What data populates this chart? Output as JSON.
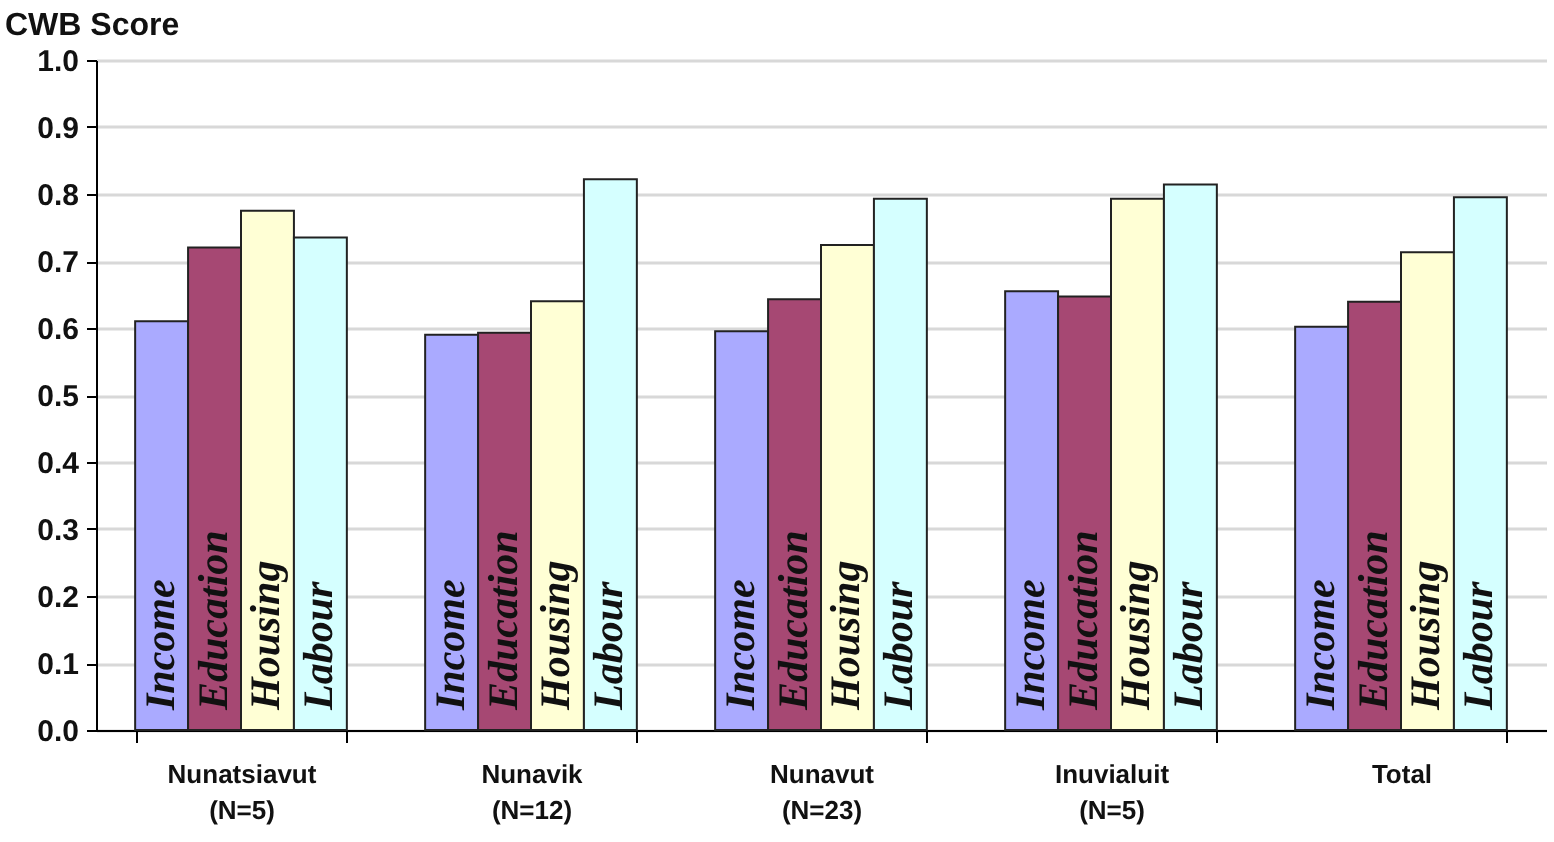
{
  "chart_data": {
    "type": "bar",
    "ylabel": "CWB Score",
    "categories": [
      "Nunatsiavut\n(N=5)",
      "Nunavik\n(N=12)",
      "Nunavut\n(N=23)",
      "Inuvialuit\n(N=5)",
      "Total"
    ],
    "series": [
      {
        "name": "Income",
        "color": "#aaaaff",
        "values": [
          0.61,
          0.59,
          0.595,
          0.655,
          0.602
        ]
      },
      {
        "name": "Education",
        "color": "#a64873",
        "values": [
          0.72,
          0.593,
          0.643,
          0.647,
          0.639
        ]
      },
      {
        "name": "Housing",
        "color": "#ffffd5",
        "values": [
          0.775,
          0.64,
          0.724,
          0.793,
          0.713
        ]
      },
      {
        "name": "Labour",
        "color": "#d5ffff",
        "values": [
          0.735,
          0.822,
          0.793,
          0.814,
          0.795
        ]
      }
    ],
    "ylim": [
      0,
      1
    ],
    "yticks": [
      {
        "value": 0,
        "label": "0.0"
      },
      0.1,
      0.2,
      0.3,
      0.4,
      0.5,
      0.6,
      0.7,
      0.8,
      0.9,
      {
        "value": 1,
        "label": "1.0"
      }
    ],
    "grid": "y",
    "legend": false
  }
}
